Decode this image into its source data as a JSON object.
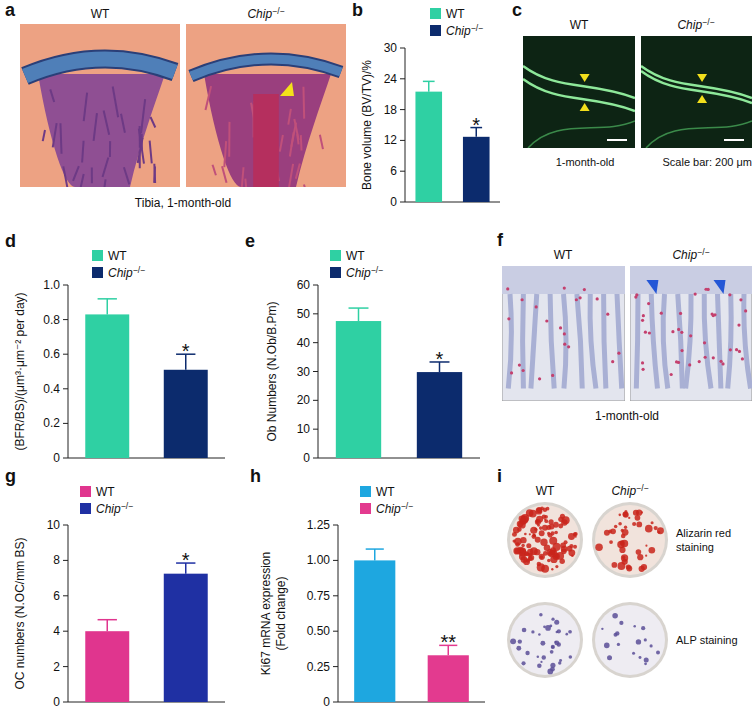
{
  "chart_data": [
    {
      "type": "bar",
      "panel": "b",
      "y_label": "Bone volume (BV/TV)/%",
      "categories": [
        null
      ],
      "series": [
        {
          "name": "WT",
          "color": "#2fd0a3",
          "values": [
            21.5
          ],
          "errors": [
            2.0
          ]
        },
        {
          "name": "Chip−/−",
          "color": "#0c2b6d",
          "values": [
            12.7
          ],
          "errors": [
            1.8
          ],
          "annotation": "*"
        }
      ],
      "ylim": [
        0,
        30
      ],
      "yticks": [
        0,
        6,
        12,
        18,
        24,
        30
      ],
      "grid": false,
      "legend": "top"
    },
    {
      "type": "bar",
      "panel": "d",
      "y_label": "(BFR/BS)/(μm³·μm⁻² per day)",
      "categories": [
        null
      ],
      "series": [
        {
          "name": "WT",
          "color": "#2fd0a3",
          "values": [
            0.83
          ],
          "errors": [
            0.09
          ]
        },
        {
          "name": "Chip−/−",
          "color": "#0c2b6d",
          "values": [
            0.51
          ],
          "errors": [
            0.09
          ],
          "annotation": "*"
        }
      ],
      "ylim": [
        0,
        1
      ],
      "yticks": [
        0,
        0.2,
        0.4,
        0.6,
        0.8,
        {
          "value": 1,
          "label": "1.0"
        }
      ],
      "grid": false,
      "legend": "top"
    },
    {
      "type": "bar",
      "panel": "e",
      "y_label": "Ob Numbers (N.Ob/B.Pm)",
      "categories": [
        null
      ],
      "series": [
        {
          "name": "WT",
          "color": "#2fd0a3",
          "values": [
            47.5
          ],
          "errors": [
            4.5
          ]
        },
        {
          "name": "Chip−/−",
          "color": "#0c2b6d",
          "values": [
            29.8
          ],
          "errors": [
            3.5
          ],
          "annotation": "*"
        }
      ],
      "ylim": [
        0,
        60
      ],
      "yticks": [
        0,
        10,
        20,
        30,
        40,
        50,
        60
      ],
      "grid": false,
      "legend": "top"
    },
    {
      "type": "bar",
      "panel": "g",
      "y_label": "OC numbers (N.OC/mm BS)",
      "categories": [
        null
      ],
      "series": [
        {
          "name": "WT",
          "color": "#e0358e",
          "values": [
            4.0
          ],
          "errors": [
            0.65
          ]
        },
        {
          "name": "Chip−/−",
          "color": "#1f30a3",
          "values": [
            7.25
          ],
          "errors": [
            0.6
          ],
          "annotation": "*"
        }
      ],
      "ylim": [
        0,
        10
      ],
      "yticks": [
        0,
        2,
        4,
        6,
        8,
        10
      ],
      "grid": false,
      "legend": "top"
    },
    {
      "type": "bar",
      "panel": "h",
      "y_label": [
        "Ki67 mRNA expression",
        "(Fold change)"
      ],
      "categories": [
        null
      ],
      "series": [
        {
          "name": "WT",
          "color": "#1ea7e0",
          "values": [
            1.0
          ],
          "errors": [
            0.08
          ]
        },
        {
          "name": "Chip−/−",
          "color": "#e33a8f",
          "values": [
            0.33
          ],
          "errors": [
            0.07
          ],
          "annotation": "**"
        }
      ],
      "ylim": [
        0,
        1.25
      ],
      "yticks": [
        0,
        0.25,
        {
          "value": 0.5,
          "label": "0.50"
        },
        0.75,
        {
          "value": 1,
          "label": "1.00"
        },
        1.25
      ],
      "grid": false,
      "legend": "top"
    }
  ],
  "figure": {
    "panels": [
      {
        "label": "a",
        "titles": [
          "WT",
          "Chip−/−"
        ],
        "captions": [
          "Tibia, 1-month-old"
        ]
      },
      {
        "label": "c",
        "titles": [
          "WT",
          "Chip−/−"
        ],
        "captions": [
          "1-month-old",
          "Scale bar: 200 μm"
        ]
      },
      {
        "label": "f",
        "titles": [
          "WT",
          "Chip−/−"
        ],
        "captions": [
          "1-month-old"
        ]
      },
      {
        "label": "i",
        "titles": [
          "WT",
          "Chip−/−"
        ],
        "captions": [
          "Alizarin red staining",
          "ALP staining"
        ]
      }
    ]
  }
}
